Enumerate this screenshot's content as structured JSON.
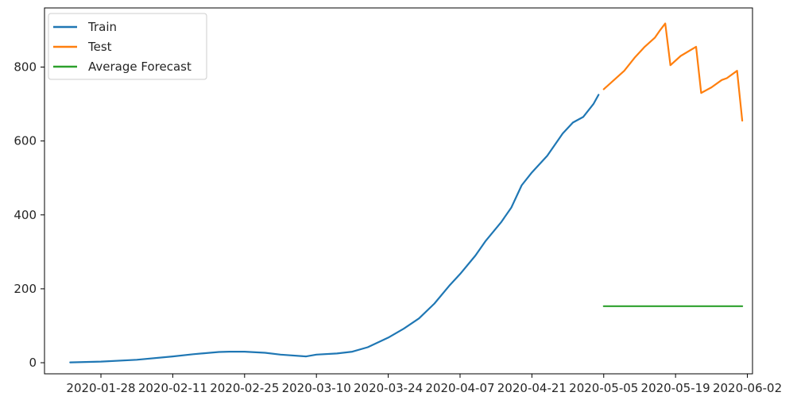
{
  "chart_data": {
    "type": "line",
    "title": "",
    "xlabel": "",
    "ylabel": "",
    "x_axis_type": "date",
    "xlim": [
      "2020-01-17",
      "2020-06-03"
    ],
    "ylim": [
      -30,
      960
    ],
    "grid": false,
    "legend_position": "top-left",
    "x_ticks": [
      "2020-01-28",
      "2020-02-11",
      "2020-02-25",
      "2020-03-10",
      "2020-03-24",
      "2020-04-07",
      "2020-04-21",
      "2020-05-05",
      "2020-05-19",
      "2020-06-02"
    ],
    "y_ticks": [
      0,
      200,
      400,
      600,
      800
    ],
    "series": [
      {
        "name": "Train",
        "color": "#1f77b4",
        "points": [
          [
            "2020-01-22",
            1
          ],
          [
            "2020-01-28",
            3
          ],
          [
            "2020-02-04",
            8
          ],
          [
            "2020-02-11",
            17
          ],
          [
            "2020-02-15",
            23
          ],
          [
            "2020-02-20",
            29
          ],
          [
            "2020-02-22",
            30
          ],
          [
            "2020-02-25",
            30
          ],
          [
            "2020-02-29",
            27
          ],
          [
            "2020-03-03",
            22
          ],
          [
            "2020-03-08",
            17
          ],
          [
            "2020-03-10",
            22
          ],
          [
            "2020-03-14",
            25
          ],
          [
            "2020-03-17",
            30
          ],
          [
            "2020-03-20",
            42
          ],
          [
            "2020-03-24",
            68
          ],
          [
            "2020-03-27",
            92
          ],
          [
            "2020-03-30",
            120
          ],
          [
            "2020-04-02",
            160
          ],
          [
            "2020-04-05",
            210
          ],
          [
            "2020-04-07",
            240
          ],
          [
            "2020-04-10",
            290
          ],
          [
            "2020-04-12",
            330
          ],
          [
            "2020-04-15",
            380
          ],
          [
            "2020-04-17",
            420
          ],
          [
            "2020-04-19",
            480
          ],
          [
            "2020-04-21",
            515
          ],
          [
            "2020-04-24",
            560
          ],
          [
            "2020-04-27",
            620
          ],
          [
            "2020-04-29",
            650
          ],
          [
            "2020-05-01",
            665
          ],
          [
            "2020-05-03",
            700
          ],
          [
            "2020-05-04",
            725
          ]
        ]
      },
      {
        "name": "Test",
        "color": "#ff7f0e",
        "points": [
          [
            "2020-05-05",
            740
          ],
          [
            "2020-05-07",
            765
          ],
          [
            "2020-05-09",
            790
          ],
          [
            "2020-05-11",
            825
          ],
          [
            "2020-05-13",
            855
          ],
          [
            "2020-05-15",
            880
          ],
          [
            "2020-05-16",
            900
          ],
          [
            "2020-05-17",
            918
          ],
          [
            "2020-05-18",
            805
          ],
          [
            "2020-05-20",
            830
          ],
          [
            "2020-05-23",
            855
          ],
          [
            "2020-05-24",
            730
          ],
          [
            "2020-05-26",
            745
          ],
          [
            "2020-05-28",
            765
          ],
          [
            "2020-05-29",
            770
          ],
          [
            "2020-05-31",
            790
          ],
          [
            "2020-06-01",
            655
          ]
        ]
      },
      {
        "name": "Average Forecast",
        "color": "#2ca02c",
        "points": [
          [
            "2020-05-05",
            153
          ],
          [
            "2020-06-01",
            153
          ]
        ]
      }
    ]
  }
}
